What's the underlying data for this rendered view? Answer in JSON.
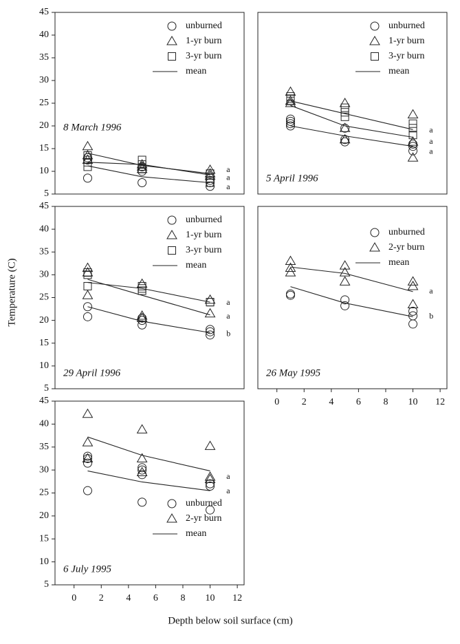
{
  "figure": {
    "xlabel": "Depth below soil surface (cm)",
    "ylabel": "Temperature (C)"
  },
  "chart_data": [
    {
      "type": "scatter",
      "label": "8 March 1996",
      "label_position": "middle left",
      "legend": "upper right",
      "xlim": [
        -1.4,
        12.5
      ],
      "ylim": [
        5,
        45
      ],
      "yticks": [
        5,
        10,
        15,
        20,
        25,
        30,
        35,
        40,
        45
      ],
      "series": [
        {
          "name": "unburned",
          "marker": "circle",
          "x": [
            1,
            1,
            1,
            5,
            5,
            5,
            10,
            10,
            10
          ],
          "values": [
            8.5,
            12.5,
            13,
            7.5,
            10,
            11,
            6.7,
            7.5,
            8
          ]
        },
        {
          "name": "1-yr burn",
          "marker": "triangle",
          "x": [
            1,
            1,
            1,
            5,
            5,
            5,
            10,
            10,
            10
          ],
          "values": [
            15.5,
            13.5,
            12.5,
            11.5,
            11,
            10.5,
            10.3,
            9.5,
            9
          ]
        },
        {
          "name": "3-yr burn",
          "marker": "square",
          "x": [
            1,
            1,
            1,
            5,
            5,
            5,
            10,
            10,
            10
          ],
          "values": [
            11,
            12,
            13.5,
            12.5,
            11.5,
            10.5,
            9.5,
            8.5,
            7.5
          ]
        }
      ],
      "mean": {
        "name": "mean",
        "lines": [
          {
            "x": [
              1,
              5,
              10
            ],
            "values": [
              11.2,
              8.8,
              7.5
            ]
          },
          {
            "x": [
              1,
              5,
              10
            ],
            "values": [
              14,
              11.3,
              9.5
            ]
          },
          {
            "x": [
              1,
              5,
              10
            ],
            "values": [
              12,
              11.5,
              9.2
            ]
          }
        ]
      },
      "annotations": [
        {
          "text": "a",
          "x": 11.2,
          "y": 10.3
        },
        {
          "text": "a",
          "x": 11.2,
          "y": 8.5
        },
        {
          "text": "a",
          "x": 11.2,
          "y": 6.5
        }
      ]
    },
    {
      "type": "scatter",
      "label": "5 April 1996",
      "label_position": "lower left",
      "legend": "upper right",
      "xlim": [
        -1.4,
        12.5
      ],
      "ylim": [
        5,
        45
      ],
      "series": [
        {
          "name": "unburned",
          "marker": "circle",
          "x": [
            1,
            1,
            1,
            1,
            5,
            5,
            5,
            10,
            10,
            10
          ],
          "values": [
            20,
            20.5,
            21,
            21.5,
            16.5,
            17,
            19.5,
            14.5,
            15.5,
            16
          ]
        },
        {
          "name": "1-yr burn",
          "marker": "triangle",
          "x": [
            1,
            1,
            1,
            5,
            5,
            5,
            10,
            10,
            10
          ],
          "values": [
            27.5,
            25.5,
            25,
            25,
            19.5,
            17,
            22.5,
            16.5,
            13
          ]
        },
        {
          "name": "3-yr burn",
          "marker": "square",
          "x": [
            1,
            1,
            1,
            5,
            5,
            5,
            10,
            10,
            10
          ],
          "values": [
            25.5,
            26,
            26.5,
            22,
            23,
            24,
            18,
            19.5,
            20.5
          ]
        }
      ],
      "mean": {
        "name": "mean",
        "lines": [
          {
            "x": [
              1,
              5,
              10
            ],
            "values": [
              20,
              17.8,
              15.5
            ]
          },
          {
            "x": [
              1,
              5,
              10
            ],
            "values": [
              24.5,
              20,
              17.5
            ]
          },
          {
            "x": [
              1,
              5,
              10
            ],
            "values": [
              25.5,
              22.7,
              19.2
            ]
          }
        ]
      },
      "annotations": [
        {
          "text": "a",
          "x": 11.2,
          "y": 19
        },
        {
          "text": "a",
          "x": 11.2,
          "y": 16.5
        },
        {
          "text": "a",
          "x": 11.2,
          "y": 14.3
        }
      ]
    },
    {
      "type": "scatter",
      "label": "29 April 1996",
      "label_position": "lower left",
      "legend": "upper right",
      "xlim": [
        -1.4,
        12.5
      ],
      "ylim": [
        5,
        45
      ],
      "yticks": [
        5,
        10,
        15,
        20,
        25,
        30,
        35,
        40,
        45
      ],
      "series": [
        {
          "name": "unburned",
          "marker": "circle",
          "x": [
            1,
            1,
            5,
            5,
            5,
            10,
            10,
            10
          ],
          "values": [
            20.8,
            23,
            19,
            20,
            20.5,
            16.8,
            17.5,
            18
          ]
        },
        {
          "name": "1-yr burn",
          "marker": "triangle",
          "x": [
            1,
            1,
            1,
            5,
            5,
            5,
            10,
            10
          ],
          "values": [
            31.5,
            30.5,
            25.5,
            28,
            21,
            20.5,
            24.5,
            21.5
          ]
        },
        {
          "name": "3-yr burn",
          "marker": "square",
          "x": [
            1,
            1,
            1,
            5,
            5,
            5,
            10,
            10
          ],
          "values": [
            27.5,
            30,
            30.5,
            26.5,
            27,
            27.5,
            24,
            24
          ]
        }
      ],
      "mean": {
        "name": "mean",
        "lines": [
          {
            "x": [
              1,
              5,
              10
            ],
            "values": [
              23,
              19.8,
              17.3
            ]
          },
          {
            "x": [
              1,
              5,
              10
            ],
            "values": [
              29,
              25.5,
              21.2
            ]
          },
          {
            "x": [
              1,
              5,
              10
            ],
            "values": [
              28.3,
              27,
              24
            ]
          }
        ]
      },
      "annotations": [
        {
          "text": "a",
          "x": 11.2,
          "y": 23.8
        },
        {
          "text": "a",
          "x": 11.2,
          "y": 20.8
        },
        {
          "text": "b",
          "x": 11.2,
          "y": 17
        }
      ]
    },
    {
      "type": "scatter",
      "label": "26 May 1995",
      "label_position": "lower left",
      "legend": "upper right",
      "xlim": [
        -1.4,
        12.5
      ],
      "ylim": [
        5,
        45
      ],
      "xticks": [
        0,
        2,
        4,
        6,
        8,
        10,
        12
      ],
      "series": [
        {
          "name": "unburned",
          "marker": "circle",
          "x": [
            1,
            1,
            5,
            5,
            10,
            10,
            10
          ],
          "values": [
            25.5,
            25.8,
            23.2,
            24.5,
            19.2,
            21,
            22
          ]
        },
        {
          "name": "2-yr burn",
          "marker": "triangle",
          "x": [
            1,
            1,
            1,
            5,
            5,
            5,
            10,
            10,
            10
          ],
          "values": [
            33,
            31.5,
            30.5,
            32,
            30.5,
            28.5,
            28.5,
            27.5,
            23.5
          ]
        }
      ],
      "mean": {
        "name": "mean",
        "lines": [
          {
            "x": [
              1,
              5,
              10
            ],
            "values": [
              27.4,
              23.8,
              20.8
            ]
          },
          {
            "x": [
              1,
              5,
              10
            ],
            "values": [
              31.7,
              30.3,
              26.3
            ]
          }
        ]
      },
      "annotations": [
        {
          "text": "a",
          "x": 11.2,
          "y": 26.3
        },
        {
          "text": "b",
          "x": 11.2,
          "y": 20.8
        }
      ]
    },
    {
      "type": "scatter",
      "label": "6 July 1995",
      "label_position": "lower left",
      "legend": "lower right",
      "xlim": [
        -1.4,
        12.5
      ],
      "ylim": [
        5,
        45
      ],
      "xticks": [
        0,
        2,
        4,
        6,
        8,
        10,
        12
      ],
      "yticks": [
        5,
        10,
        15,
        20,
        25,
        30,
        35,
        40,
        45
      ],
      "series": [
        {
          "name": "unburned",
          "marker": "circle",
          "x": [
            1,
            1,
            1,
            1,
            5,
            5,
            5,
            5,
            10,
            10,
            10
          ],
          "values": [
            25.5,
            31.5,
            32.5,
            33,
            23,
            29,
            30,
            30.5,
            21.3,
            26.5,
            27
          ]
        },
        {
          "name": "2-yr burn",
          "marker": "triangle",
          "x": [
            1,
            1,
            1,
            5,
            5,
            5,
            10,
            10,
            10
          ],
          "values": [
            42.2,
            36,
            32.5,
            38.8,
            32.5,
            29.5,
            35.2,
            28.5,
            28
          ]
        }
      ],
      "mean": {
        "name": "mean",
        "lines": [
          {
            "x": [
              1,
              5,
              10
            ],
            "values": [
              29.8,
              27.4,
              25.5
            ]
          },
          {
            "x": [
              1,
              5,
              10
            ],
            "values": [
              37.2,
              33.2,
              29.8
            ]
          }
        ]
      },
      "annotations": [
        {
          "text": "a",
          "x": 11.2,
          "y": 28.5
        },
        {
          "text": "a",
          "x": 11.2,
          "y": 25.3
        }
      ]
    }
  ]
}
